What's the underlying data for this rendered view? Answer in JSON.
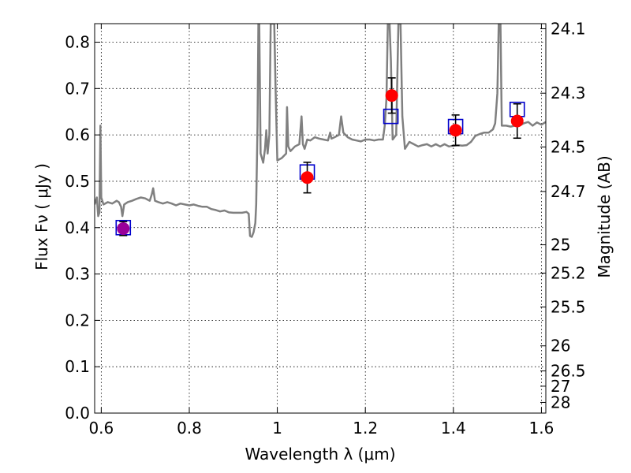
{
  "chart_data": {
    "type": "line",
    "xlabel": "Wavelength  λ (μm)",
    "ylabel": "Flux  Fν  ( μJy )",
    "y2label": "Magnitude (AB)",
    "xlim": [
      0.585,
      1.61
    ],
    "ylim": [
      0.0,
      0.84
    ],
    "grid": true,
    "x_ticks": [
      0.6,
      0.8,
      1.0,
      1.2,
      1.4,
      1.6
    ],
    "x_tick_labels": [
      "0.6",
      "0.8",
      "1",
      "1.2",
      "1.4",
      "1.6"
    ],
    "y_ticks": [
      0.0,
      0.1,
      0.2,
      0.3,
      0.4,
      0.5,
      0.6,
      0.7,
      0.8
    ],
    "y_tick_labels": [
      "0.0",
      "0.1",
      "0.2",
      "0.3",
      "0.4",
      "0.5",
      "0.6",
      "0.7",
      "0.8"
    ],
    "y2_ticks": [
      {
        "label": "24.1",
        "flux": 0.829
      },
      {
        "label": "24.3",
        "flux": 0.69
      },
      {
        "label": "24.5",
        "flux": 0.574
      },
      {
        "label": "24.7",
        "flux": 0.478
      },
      {
        "label": "25",
        "flux": 0.363
      },
      {
        "label": "25.2",
        "flux": 0.302
      },
      {
        "label": "25.5",
        "flux": 0.229
      },
      {
        "label": "26",
        "flux": 0.145
      },
      {
        "label": "26.5",
        "flux": 0.091
      },
      {
        "label": "27",
        "flux": 0.058
      },
      {
        "label": "28",
        "flux": 0.023
      }
    ],
    "series": [
      {
        "kind": "spectrum",
        "color": "#808080",
        "points": [
          [
            0.585,
            0.45
          ],
          [
            0.59,
            0.465
          ],
          [
            0.593,
            0.425
          ],
          [
            0.596,
            0.433
          ],
          [
            0.598,
            0.62
          ],
          [
            0.6,
            0.465
          ],
          [
            0.605,
            0.45
          ],
          [
            0.615,
            0.455
          ],
          [
            0.625,
            0.452
          ],
          [
            0.635,
            0.458
          ],
          [
            0.64,
            0.455
          ],
          [
            0.645,
            0.445
          ],
          [
            0.648,
            0.425
          ],
          [
            0.652,
            0.45
          ],
          [
            0.66,
            0.455
          ],
          [
            0.67,
            0.458
          ],
          [
            0.68,
            0.462
          ],
          [
            0.69,
            0.465
          ],
          [
            0.7,
            0.463
          ],
          [
            0.71,
            0.458
          ],
          [
            0.715,
            0.472
          ],
          [
            0.718,
            0.485
          ],
          [
            0.722,
            0.458
          ],
          [
            0.73,
            0.455
          ],
          [
            0.74,
            0.452
          ],
          [
            0.75,
            0.455
          ],
          [
            0.76,
            0.452
          ],
          [
            0.77,
            0.448
          ],
          [
            0.78,
            0.452
          ],
          [
            0.79,
            0.45
          ],
          [
            0.8,
            0.448
          ],
          [
            0.81,
            0.45
          ],
          [
            0.82,
            0.447
          ],
          [
            0.83,
            0.445
          ],
          [
            0.84,
            0.445
          ],
          [
            0.85,
            0.44
          ],
          [
            0.86,
            0.438
          ],
          [
            0.87,
            0.435
          ],
          [
            0.88,
            0.437
          ],
          [
            0.89,
            0.433
          ],
          [
            0.9,
            0.432
          ],
          [
            0.91,
            0.432
          ],
          [
            0.92,
            0.432
          ],
          [
            0.93,
            0.434
          ],
          [
            0.935,
            0.43
          ],
          [
            0.938,
            0.382
          ],
          [
            0.942,
            0.38
          ],
          [
            0.946,
            0.39
          ],
          [
            0.95,
            0.41
          ],
          [
            0.952,
            0.45
          ],
          [
            0.955,
            0.62
          ],
          [
            0.957,
            0.84
          ],
          [
            0.959,
            0.84
          ],
          [
            0.962,
            0.56
          ],
          [
            0.968,
            0.54
          ],
          [
            0.972,
            0.57
          ],
          [
            0.975,
            0.61
          ],
          [
            0.978,
            0.56
          ],
          [
            0.982,
            0.6
          ],
          [
            0.985,
            0.84
          ],
          [
            0.99,
            0.84
          ],
          [
            0.993,
            0.84
          ],
          [
            0.996,
            0.7
          ],
          [
            1.0,
            0.545
          ],
          [
            1.01,
            0.55
          ],
          [
            1.02,
            0.56
          ],
          [
            1.022,
            0.66
          ],
          [
            1.025,
            0.575
          ],
          [
            1.03,
            0.565
          ],
          [
            1.04,
            0.575
          ],
          [
            1.05,
            0.58
          ],
          [
            1.055,
            0.64
          ],
          [
            1.058,
            0.58
          ],
          [
            1.062,
            0.57
          ],
          [
            1.068,
            0.59
          ],
          [
            1.075,
            0.588
          ],
          [
            1.085,
            0.595
          ],
          [
            1.095,
            0.592
          ],
          [
            1.105,
            0.59
          ],
          [
            1.115,
            0.588
          ],
          [
            1.12,
            0.605
          ],
          [
            1.123,
            0.592
          ],
          [
            1.13,
            0.595
          ],
          [
            1.14,
            0.6
          ],
          [
            1.145,
            0.64
          ],
          [
            1.15,
            0.605
          ],
          [
            1.16,
            0.595
          ],
          [
            1.17,
            0.59
          ],
          [
            1.18,
            0.588
          ],
          [
            1.19,
            0.586
          ],
          [
            1.2,
            0.59
          ],
          [
            1.21,
            0.59
          ],
          [
            1.22,
            0.588
          ],
          [
            1.23,
            0.59
          ],
          [
            1.24,
            0.59
          ],
          [
            1.244,
            0.62
          ],
          [
            1.248,
            0.68
          ],
          [
            1.251,
            0.84
          ],
          [
            1.255,
            0.84
          ],
          [
            1.258,
            0.76
          ],
          [
            1.262,
            0.59
          ],
          [
            1.27,
            0.6
          ],
          [
            1.275,
            0.84
          ],
          [
            1.28,
            0.84
          ],
          [
            1.284,
            0.64
          ],
          [
            1.29,
            0.57
          ],
          [
            1.3,
            0.585
          ],
          [
            1.31,
            0.58
          ],
          [
            1.32,
            0.575
          ],
          [
            1.33,
            0.578
          ],
          [
            1.34,
            0.58
          ],
          [
            1.35,
            0.575
          ],
          [
            1.36,
            0.58
          ],
          [
            1.37,
            0.575
          ],
          [
            1.38,
            0.58
          ],
          [
            1.39,
            0.575
          ],
          [
            1.4,
            0.577
          ],
          [
            1.41,
            0.578
          ],
          [
            1.42,
            0.577
          ],
          [
            1.43,
            0.578
          ],
          [
            1.44,
            0.585
          ],
          [
            1.45,
            0.598
          ],
          [
            1.46,
            0.602
          ],
          [
            1.47,
            0.605
          ],
          [
            1.48,
            0.605
          ],
          [
            1.49,
            0.612
          ],
          [
            1.495,
            0.625
          ],
          [
            1.5,
            0.69
          ],
          [
            1.503,
            0.84
          ],
          [
            1.507,
            0.84
          ],
          [
            1.51,
            0.62
          ],
          [
            1.52,
            0.62
          ],
          [
            1.53,
            0.618
          ],
          [
            1.54,
            0.62
          ],
          [
            1.55,
            0.62
          ],
          [
            1.56,
            0.625
          ],
          [
            1.57,
            0.628
          ],
          [
            1.58,
            0.62
          ],
          [
            1.59,
            0.627
          ],
          [
            1.6,
            0.622
          ],
          [
            1.61,
            0.628
          ]
        ]
      },
      {
        "kind": "model-photometry",
        "color": "#0000cc",
        "marker": "open-square",
        "points": [
          [
            0.65,
            0.4
          ],
          [
            1.068,
            0.52
          ],
          [
            1.258,
            0.64
          ],
          [
            1.405,
            0.618
          ],
          [
            1.545,
            0.655
          ]
        ]
      },
      {
        "kind": "observed-photometry",
        "color": "#ff0000",
        "marker": "filled-circle",
        "points": [
          {
            "x": 1.068,
            "y": 0.508,
            "err": 0.033
          },
          {
            "x": 1.26,
            "y": 0.685,
            "err": 0.038
          },
          {
            "x": 1.405,
            "y": 0.61,
            "err": 0.033
          },
          {
            "x": 1.545,
            "y": 0.63,
            "err": 0.037
          }
        ]
      },
      {
        "kind": "observed-photometry-alt",
        "color": "#990099",
        "marker": "filled-circle",
        "points": [
          {
            "x": 0.65,
            "y": 0.398,
            "err": 0.015
          }
        ]
      }
    ]
  }
}
